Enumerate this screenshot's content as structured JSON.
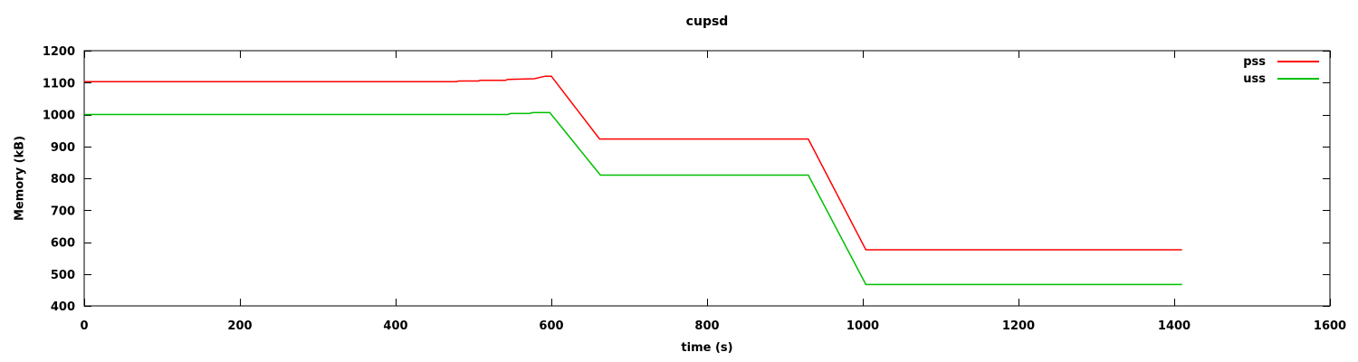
{
  "chart_data": {
    "type": "line",
    "title": "cupsd",
    "xlabel": "time (s)",
    "ylabel": "Memory (kB)",
    "xlim": [
      0,
      1600
    ],
    "ylim": [
      400,
      1200
    ],
    "x_ticks": [
      0,
      200,
      400,
      600,
      800,
      1000,
      1200,
      1400,
      1600
    ],
    "y_ticks": [
      400,
      500,
      600,
      700,
      800,
      900,
      1000,
      1100,
      1200
    ],
    "grid": false,
    "legend_position": "top-right-inside",
    "background_color": "#ffffff",
    "axis_color": "#000000",
    "series": [
      {
        "name": "pss",
        "color": "#ff0000",
        "points": [
          [
            0,
            1103
          ],
          [
            478,
            1103
          ],
          [
            481,
            1105
          ],
          [
            506,
            1105
          ],
          [
            509,
            1107
          ],
          [
            541,
            1107
          ],
          [
            544,
            1110
          ],
          [
            578,
            1112
          ],
          [
            592,
            1120
          ],
          [
            600,
            1120
          ],
          [
            662,
            923
          ],
          [
            930,
            923
          ],
          [
            1004,
            576
          ],
          [
            1410,
            576
          ]
        ]
      },
      {
        "name": "uss",
        "color": "#00c000",
        "points": [
          [
            0,
            1000
          ],
          [
            544,
            1000
          ],
          [
            548,
            1003
          ],
          [
            572,
            1003
          ],
          [
            576,
            1006
          ],
          [
            598,
            1006
          ],
          [
            663,
            810
          ],
          [
            930,
            810
          ],
          [
            1004,
            467
          ],
          [
            1410,
            467
          ]
        ]
      }
    ]
  }
}
